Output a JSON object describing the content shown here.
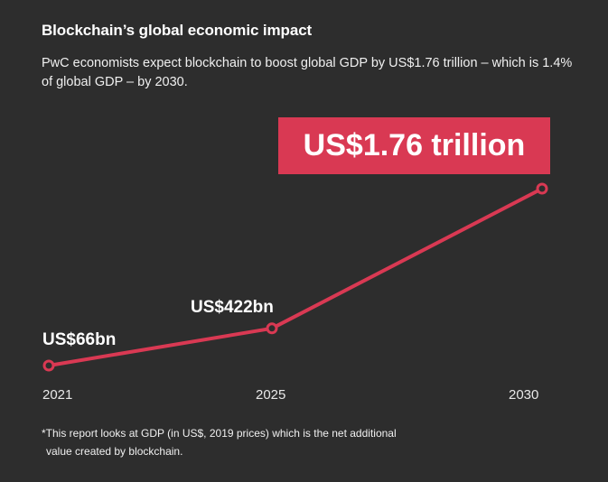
{
  "title": "Blockchain’s global economic impact",
  "subtitle": "PwC economists expect blockchain to boost global GDP by US$1.76 trillion – which is 1.4% of global GDP – by 2030.",
  "highlight_label": "US$1.76 trillion",
  "footnote_line1": "*This report looks at GDP (in US$, 2019 prices) which is the net additional",
  "footnote_line2": "value created by blockchain.",
  "colors": {
    "background": "#2d2d2d",
    "accent": "#d93953",
    "text": "#ffffff"
  },
  "chart_data": {
    "type": "line",
    "categories": [
      "2021",
      "2025",
      "2030"
    ],
    "values": [
      66,
      422,
      1760
    ],
    "unit": "US$ billion",
    "data_labels": [
      "US$66bn",
      "US$422bn",
      ""
    ],
    "xlabel": "",
    "ylabel": "",
    "grid": false
  }
}
